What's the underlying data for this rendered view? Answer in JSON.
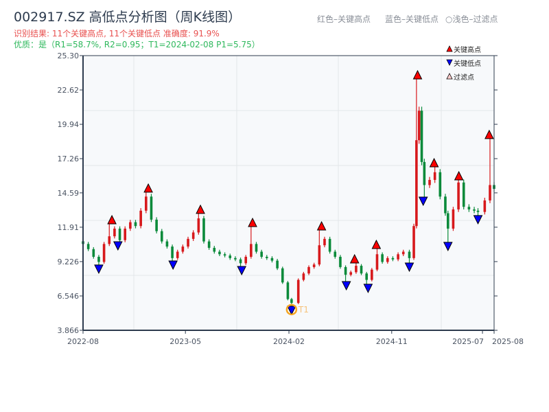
{
  "header": {
    "title": "002917.SZ 高低点分析图（周K线图）",
    "result_line": "识别结果: 11个关键高点, 11个关键低点  准确度: 91.9%",
    "quality_line": "优质：是（R1=58.7%, R2=0.95；T1=2024-02-08 P1=5.75）",
    "hint_high": "红色–关键高点",
    "hint_low": "蓝色–关键低点",
    "hint_filtered": "○浅色–过滤点"
  },
  "chart_data": {
    "type": "candlestick",
    "title": "002917.SZ 高低点分析图（周K线图）",
    "x_range": [
      "2022-08-01",
      "2025-08-01"
    ],
    "ylim": [
      3.866,
      25.3
    ],
    "y_ticks": [
      "3.866",
      "6.546",
      "9.226",
      "11.91",
      "14.59",
      "17.26",
      "19.94",
      "22.62",
      "25.30"
    ],
    "x_ticks": [
      "2022-08",
      "2023-05",
      "2024-02",
      "2024-11",
      "2025-07",
      "2025-08"
    ],
    "grid": true,
    "legend_placement": "top-right",
    "legend": [
      {
        "label": "关键高点",
        "marker": "triangle-up",
        "color": "#ff0000"
      },
      {
        "label": "关键低点",
        "marker": "triangle-down",
        "color": "#0000ff"
      },
      {
        "label": "过滤点",
        "marker": "triangle-up-light",
        "color": "#ffcccc"
      }
    ],
    "colors": {
      "up": "#d7191c",
      "down": "#0a8a3a",
      "high_marker": "#ff0000",
      "low_marker": "#0000ff",
      "t1_ring": "#f5a623",
      "plot_bg": "#f7f9fb"
    },
    "closes": [
      [
        "2022-08-01",
        10.6
      ],
      [
        "2022-08-15",
        10.2
      ],
      [
        "2022-08-29",
        9.6
      ],
      [
        "2022-09-12",
        9.2
      ],
      [
        "2022-09-26",
        10.6
      ],
      [
        "2022-10-10",
        11.2
      ],
      [
        "2022-10-24",
        11.8
      ],
      [
        "2022-11-07",
        10.9
      ],
      [
        "2022-11-21",
        11.8
      ],
      [
        "2022-12-05",
        12.3
      ],
      [
        "2022-12-19",
        12.0
      ],
      [
        "2023-01-02",
        13.2
      ],
      [
        "2023-01-16",
        14.3
      ],
      [
        "2023-01-30",
        12.5
      ],
      [
        "2023-02-13",
        11.6
      ],
      [
        "2023-02-27",
        10.8
      ],
      [
        "2023-03-13",
        10.4
      ],
      [
        "2023-03-27",
        9.5
      ],
      [
        "2023-04-10",
        10.0
      ],
      [
        "2023-04-24",
        10.4
      ],
      [
        "2023-05-08",
        11.0
      ],
      [
        "2023-05-22",
        11.5
      ],
      [
        "2023-06-05",
        12.6
      ],
      [
        "2023-06-19",
        10.8
      ],
      [
        "2023-07-03",
        10.3
      ],
      [
        "2023-07-17",
        10.0
      ],
      [
        "2023-07-31",
        9.8
      ],
      [
        "2023-08-14",
        9.7
      ],
      [
        "2023-08-28",
        9.5
      ],
      [
        "2023-09-11",
        9.4
      ],
      [
        "2023-09-25",
        9.1
      ],
      [
        "2023-10-09",
        9.6
      ],
      [
        "2023-10-23",
        10.6
      ],
      [
        "2023-11-06",
        10.0
      ],
      [
        "2023-11-20",
        9.6
      ],
      [
        "2023-12-04",
        9.5
      ],
      [
        "2023-12-18",
        9.3
      ],
      [
        "2024-01-01",
        8.7
      ],
      [
        "2024-01-15",
        7.6
      ],
      [
        "2024-01-29",
        6.3
      ],
      [
        "2024-02-08",
        6.0
      ],
      [
        "2024-02-26",
        7.8
      ],
      [
        "2024-03-11",
        8.3
      ],
      [
        "2024-03-25",
        8.8
      ],
      [
        "2024-04-08",
        9.0
      ],
      [
        "2024-04-22",
        10.5
      ],
      [
        "2024-05-06",
        11.0
      ],
      [
        "2024-05-20",
        10.0
      ],
      [
        "2024-06-03",
        9.6
      ],
      [
        "2024-06-17",
        8.8
      ],
      [
        "2024-07-01",
        8.2
      ],
      [
        "2024-07-15",
        8.4
      ],
      [
        "2024-07-29",
        8.9
      ],
      [
        "2024-08-12",
        8.3
      ],
      [
        "2024-08-26",
        7.8
      ],
      [
        "2024-09-09",
        8.6
      ],
      [
        "2024-09-23",
        9.8
      ],
      [
        "2024-10-07",
        9.2
      ],
      [
        "2024-10-21",
        9.5
      ],
      [
        "2024-11-04",
        9.4
      ],
      [
        "2024-11-18",
        9.8
      ],
      [
        "2024-12-02",
        10.0
      ],
      [
        "2024-12-18",
        9.5
      ],
      [
        "2024-12-30",
        12.0
      ],
      [
        "2025-01-06",
        18.7
      ],
      [
        "2025-01-13",
        21.0
      ],
      [
        "2025-01-20",
        17.0
      ],
      [
        "2025-01-27",
        15.2
      ],
      [
        "2025-02-10",
        15.6
      ],
      [
        "2025-02-24",
        16.2
      ],
      [
        "2025-03-10",
        14.3
      ],
      [
        "2025-03-24",
        13.0
      ],
      [
        "2025-03-31",
        11.8
      ],
      [
        "2025-04-14",
        13.3
      ],
      [
        "2025-04-28",
        15.4
      ],
      [
        "2025-05-12",
        13.5
      ],
      [
        "2025-05-26",
        13.3
      ],
      [
        "2025-06-09",
        13.2
      ],
      [
        "2025-06-19",
        13.1
      ],
      [
        "2025-07-07",
        14.0
      ],
      [
        "2025-07-21",
        15.2
      ],
      [
        "2025-08-01",
        14.9
      ]
    ],
    "key_highs": [
      [
        "2022-10-17",
        12.17
      ],
      [
        "2023-01-22",
        14.64
      ],
      [
        "2023-06-10",
        12.98
      ],
      [
        "2023-10-27",
        11.96
      ],
      [
        "2024-04-28",
        11.69
      ],
      [
        "2024-07-25",
        9.12
      ],
      [
        "2024-09-21",
        10.24
      ],
      [
        "2025-01-09",
        23.48
      ],
      [
        "2025-02-22",
        16.62
      ],
      [
        "2025-04-29",
        15.6
      ],
      [
        "2025-07-19",
        18.82
      ]
    ],
    "key_lows": [
      [
        "2022-09-12",
        8.96
      ],
      [
        "2022-11-02",
        10.78
      ],
      [
        "2023-03-29",
        9.28
      ],
      [
        "2023-09-28",
        8.85
      ],
      [
        "2024-02-08",
        5.75
      ],
      [
        "2024-07-03",
        7.67
      ],
      [
        "2024-08-30",
        7.46
      ],
      [
        "2024-12-18",
        9.12
      ],
      [
        "2025-01-24",
        14.26
      ],
      [
        "2025-03-31",
        10.73
      ],
      [
        "2025-06-19",
        12.82
      ]
    ],
    "annotation": {
      "label": "T1",
      "date": "2024-02-08",
      "price": 5.75
    }
  }
}
